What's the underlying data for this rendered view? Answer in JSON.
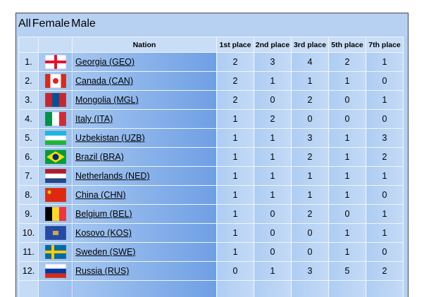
{
  "tabs": [
    "All",
    "Female",
    "Male"
  ],
  "table": {
    "header": [
      "Nation",
      "1st place",
      "2nd place",
      "3rd place",
      "5th place",
      "7th place"
    ],
    "rows": [
      {
        "rank": "1.",
        "nation": "Georgia (GEO)",
        "values": [
          2,
          3,
          4,
          2,
          1
        ]
      },
      {
        "rank": "2.",
        "nation": "Canada (CAN)",
        "values": [
          2,
          1,
          1,
          1,
          0
        ]
      },
      {
        "rank": "3.",
        "nation": "Mongolia (MGL)",
        "values": [
          2,
          0,
          2,
          0,
          1
        ]
      },
      {
        "rank": "4.",
        "nation": "Italy (ITA)",
        "values": [
          1,
          2,
          0,
          0,
          0
        ]
      },
      {
        "rank": "5.",
        "nation": "Uzbekistan (UZB)",
        "values": [
          1,
          1,
          3,
          1,
          3
        ]
      },
      {
        "rank": "6.",
        "nation": "Brazil (BRA)",
        "values": [
          1,
          1,
          2,
          1,
          2
        ]
      },
      {
        "rank": "7.",
        "nation": "Netherlands (NED)",
        "values": [
          1,
          1,
          1,
          1,
          1
        ]
      },
      {
        "rank": "8.",
        "nation": "China (CHN)",
        "values": [
          1,
          1,
          1,
          1,
          0
        ]
      },
      {
        "rank": "9.",
        "nation": "Belgium (BEL)",
        "values": [
          1,
          0,
          2,
          0,
          1
        ]
      },
      {
        "rank": "10.",
        "nation": "Kosovo (KOS)",
        "values": [
          1,
          0,
          0,
          1,
          1
        ]
      },
      {
        "rank": "11.",
        "nation": "Sweden (SWE)",
        "values": [
          1,
          0,
          0,
          1,
          0
        ]
      },
      {
        "rank": "12.",
        "nation": "Russia (RUS)",
        "values": [
          0,
          1,
          3,
          5,
          2
        ]
      }
    ]
  }
}
